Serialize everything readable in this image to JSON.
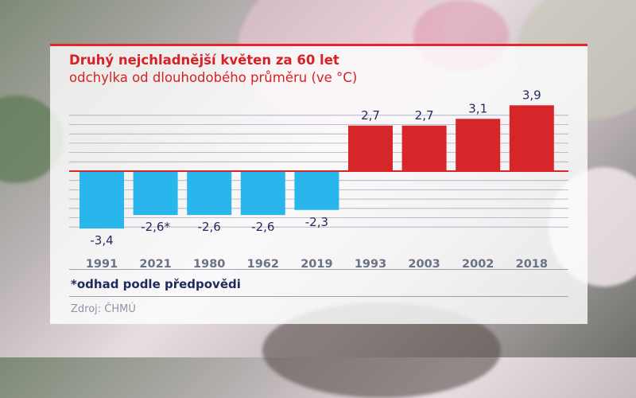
{
  "chart_data": {
    "type": "bar",
    "title": "Druhý nejchladnější květen za 60 let",
    "subtitle": "odchylka od dlouhodobého průměru (ve °C)",
    "categories": [
      "1991",
      "2021",
      "1980",
      "1962",
      "2019",
      "1993",
      "2003",
      "2002",
      "2018"
    ],
    "values": [
      -3.4,
      -2.6,
      -2.6,
      -2.6,
      -2.3,
      2.7,
      2.7,
      3.1,
      3.9
    ],
    "value_labels": [
      "-3,4",
      "-2,6*",
      "-2,6",
      "-2,6",
      "-2,3",
      "2,7",
      "2,7",
      "3,1",
      "3,9"
    ],
    "colors": {
      "negative": "#29b6ec",
      "positive": "#d7262a",
      "label": "#1e2a5e",
      "tick": "#6a7285"
    },
    "grid": true
  },
  "footnote": "*odhad podle předpovědi",
  "source": "Zdroj: ČHMÚ"
}
